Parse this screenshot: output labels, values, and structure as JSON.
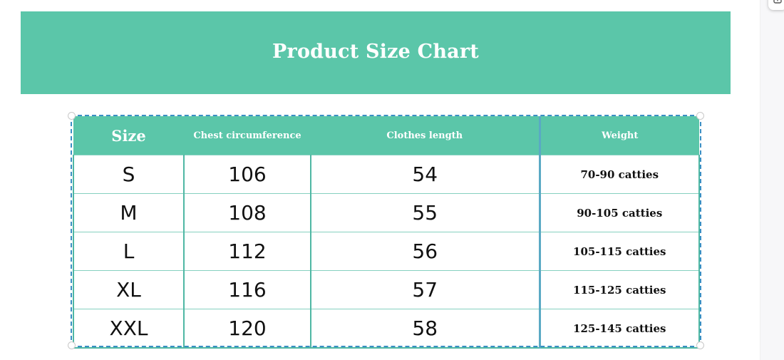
{
  "banner": {
    "title": "Product Size Chart",
    "color": "#5bc6a9"
  },
  "table": {
    "headers": {
      "size": "Size",
      "chest": "Chest circumference",
      "length": "Clothes length",
      "weight": "Weight"
    },
    "rows": [
      {
        "size": "S",
        "chest": "106",
        "length": "54",
        "weight": "70-90 catties"
      },
      {
        "size": "M",
        "chest": "108",
        "length": "55",
        "weight": "90-105 catties"
      },
      {
        "size": "L",
        "chest": "112",
        "length": "56",
        "weight": "105-115 catties"
      },
      {
        "size": "XL",
        "chest": "116",
        "length": "57",
        "weight": "115-125 catties"
      },
      {
        "size": "XXL",
        "chest": "120",
        "length": "58",
        "weight": "125-145 catties"
      }
    ]
  },
  "toolbar": {
    "corner_icon": "add-frame-icon"
  }
}
